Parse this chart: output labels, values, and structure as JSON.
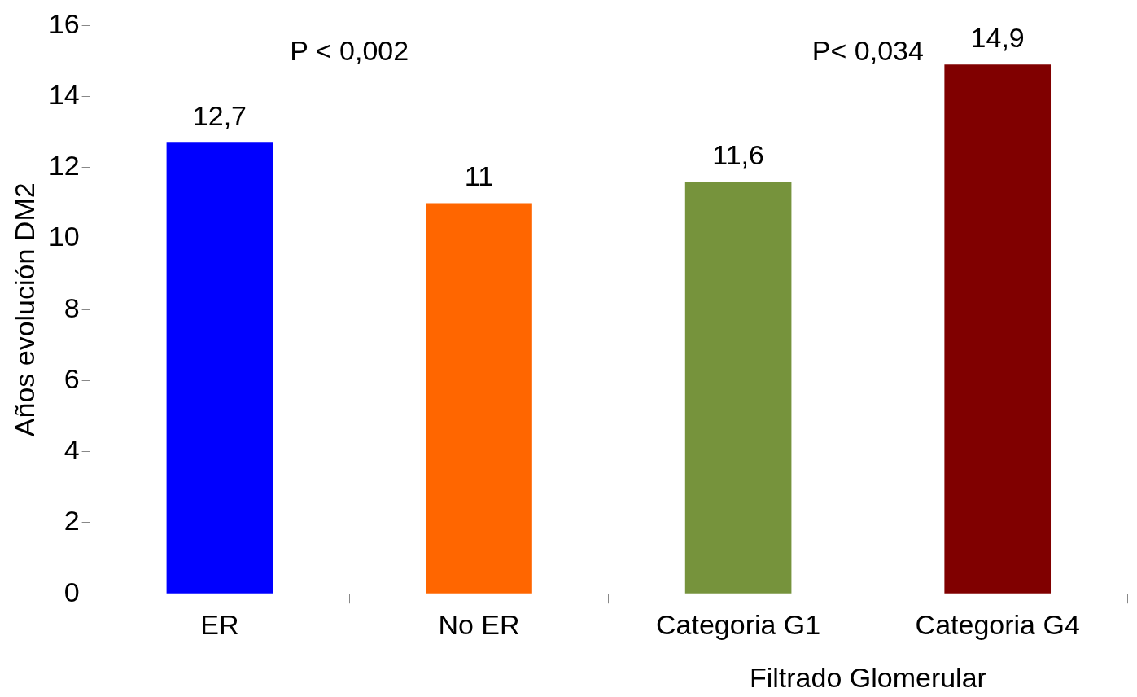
{
  "chart_data": {
    "type": "bar",
    "ylabel": "Años evolución DM2",
    "xlabel": "Filtrado Glomerular",
    "categories": [
      "ER",
      "No ER",
      "Categoria G1",
      "Categoria G4"
    ],
    "values": [
      12.7,
      11,
      11.6,
      14.9
    ],
    "colors": [
      "#0000ff",
      "#ff6600",
      "#76933c",
      "#800000"
    ],
    "value_labels": [
      "12,7",
      "11",
      "11,6",
      "14,9"
    ],
    "annotations": [
      "P < 0,002",
      "P< 0,034"
    ],
    "ylim": [
      0,
      16
    ],
    "yticks": [
      0,
      2,
      4,
      6,
      8,
      10,
      12,
      14,
      16
    ],
    "grid": false,
    "legend": false
  }
}
